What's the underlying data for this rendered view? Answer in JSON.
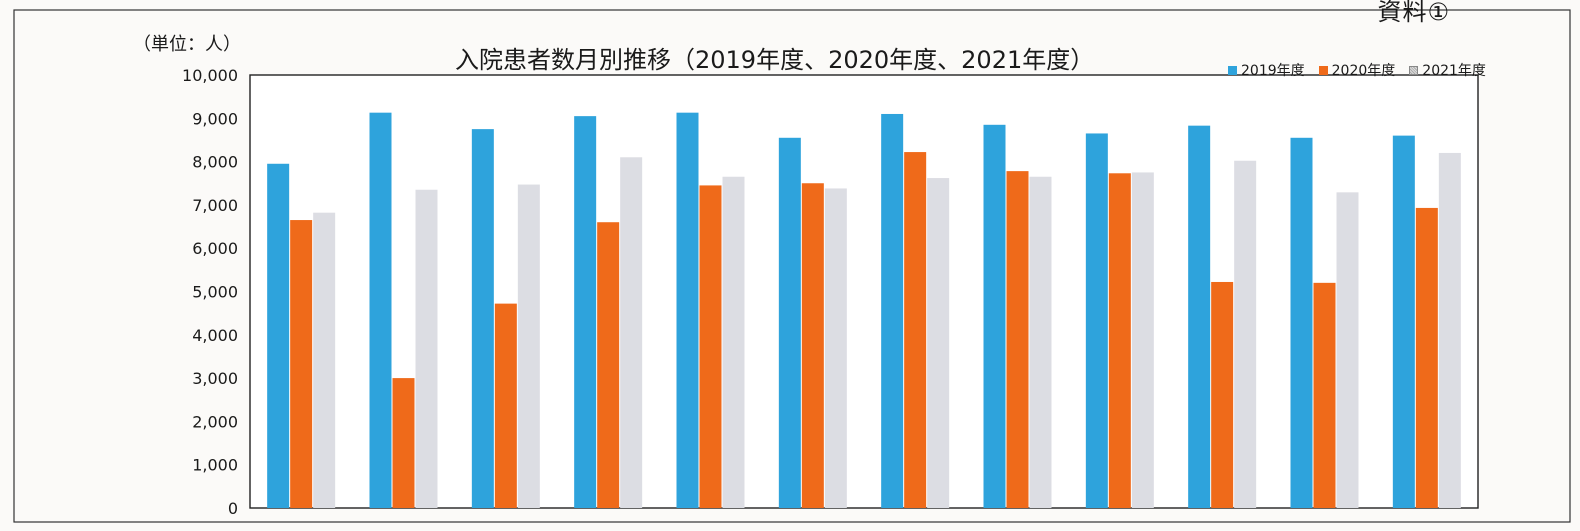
{
  "document_label": "資料①",
  "chart_data": {
    "type": "bar",
    "title": "入院患者数月別推移（2019年度、2020年度、2021年度）",
    "unit_label": "（単位：人）",
    "xlabel": "",
    "ylabel": "",
    "ylim": [
      0,
      10000
    ],
    "yticks": [
      "0",
      "1,000",
      "2,000",
      "3,000",
      "4,000",
      "5,000",
      "6,000",
      "7,000",
      "8,000",
      "9,000",
      "10,000"
    ],
    "categories": [
      "",
      "",
      "",
      "",
      "",
      "",
      "",
      "",
      "",
      "",
      "",
      ""
    ],
    "series": [
      {
        "name": "2019年度",
        "color": "#2ea3dc",
        "values": [
          7950,
          9130,
          8750,
          9050,
          9130,
          8550,
          9100,
          8850,
          8650,
          8830,
          8550,
          8600
        ]
      },
      {
        "name": "2020年度",
        "color": "#ef6a1a",
        "values": [
          6650,
          3000,
          4720,
          6600,
          7450,
          7500,
          8220,
          7780,
          7730,
          5220,
          5200,
          6930
        ]
      },
      {
        "name": "2021年度",
        "color": "#dcdde3",
        "values": [
          6820,
          7350,
          7470,
          8100,
          7650,
          7380,
          7620,
          7650,
          7750,
          8020,
          7290,
          8200
        ]
      }
    ],
    "legend_position": "top-right",
    "grid": false
  }
}
